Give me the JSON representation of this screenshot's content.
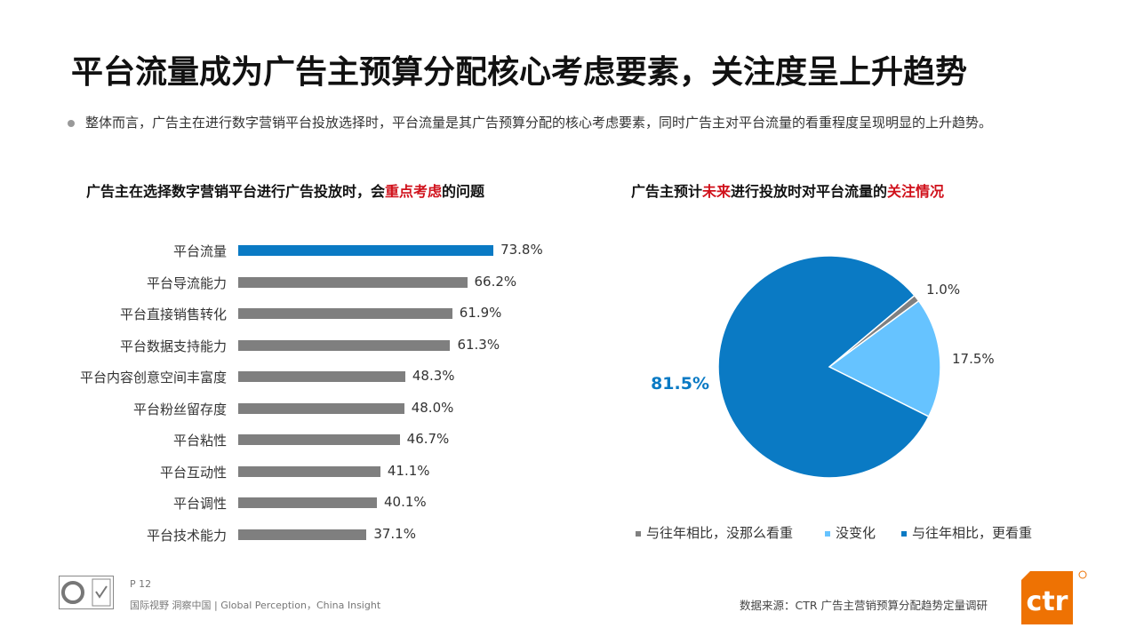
{
  "title": "平台流量成为广告主预算分配核心考虑要素，关注度呈上升趋势",
  "bullet": "整体而言，广告主在进行数字营销平台投放选择时，平台流量是其广告预算分配的核心考虑要素，同时广告主对平台流量的看重程度呈现明显的上升趋势。",
  "chart_data": [
    {
      "type": "bar",
      "orientation": "horizontal",
      "title_parts": [
        "广告主在选择数字营销平台进行广告投放时，会",
        "重点考虑",
        "的问题"
      ],
      "categories": [
        "平台流量",
        "平台导流能力",
        "平台直接销售转化",
        "平台数据支持能力",
        "平台内容创意空间丰富度",
        "平台粉丝留存度",
        "平台粘性",
        "平台互动性",
        "平台调性",
        "平台技术能力"
      ],
      "values": [
        73.8,
        66.2,
        61.9,
        61.3,
        48.3,
        48.0,
        46.7,
        41.1,
        40.1,
        37.1
      ],
      "labels": [
        "73.8%",
        "66.2%",
        "61.9%",
        "61.3%",
        "48.3%",
        "48.0%",
        "46.7%",
        "41.1%",
        "40.1%",
        "37.1%"
      ],
      "highlight_color": "#0a7ac4",
      "bar_color": "#7f7f7f"
    },
    {
      "type": "pie",
      "title_parts": [
        "广告主预计",
        "未来",
        "进行投放时对平台流量的",
        "关注情况"
      ],
      "slices": [
        {
          "name": "与往年相比，没那么看重",
          "value": 1.0,
          "label": "1.0%",
          "color": "#808080"
        },
        {
          "name": "没变化",
          "value": 17.5,
          "label": "17.5%",
          "color": "#66c3ff"
        },
        {
          "name": "与往年相比，更看重",
          "value": 81.5,
          "label": "81.5%",
          "color": "#0a7ac4"
        }
      ],
      "legend_position": "bottom"
    }
  ],
  "footer": {
    "page": "P 12",
    "slogan": "国际视野  洞察中国 |  Global Perception，China Insight",
    "source": "数据来源：CTR 广告主营销预算分配趋势定量调研",
    "logo_text": "ctr"
  }
}
